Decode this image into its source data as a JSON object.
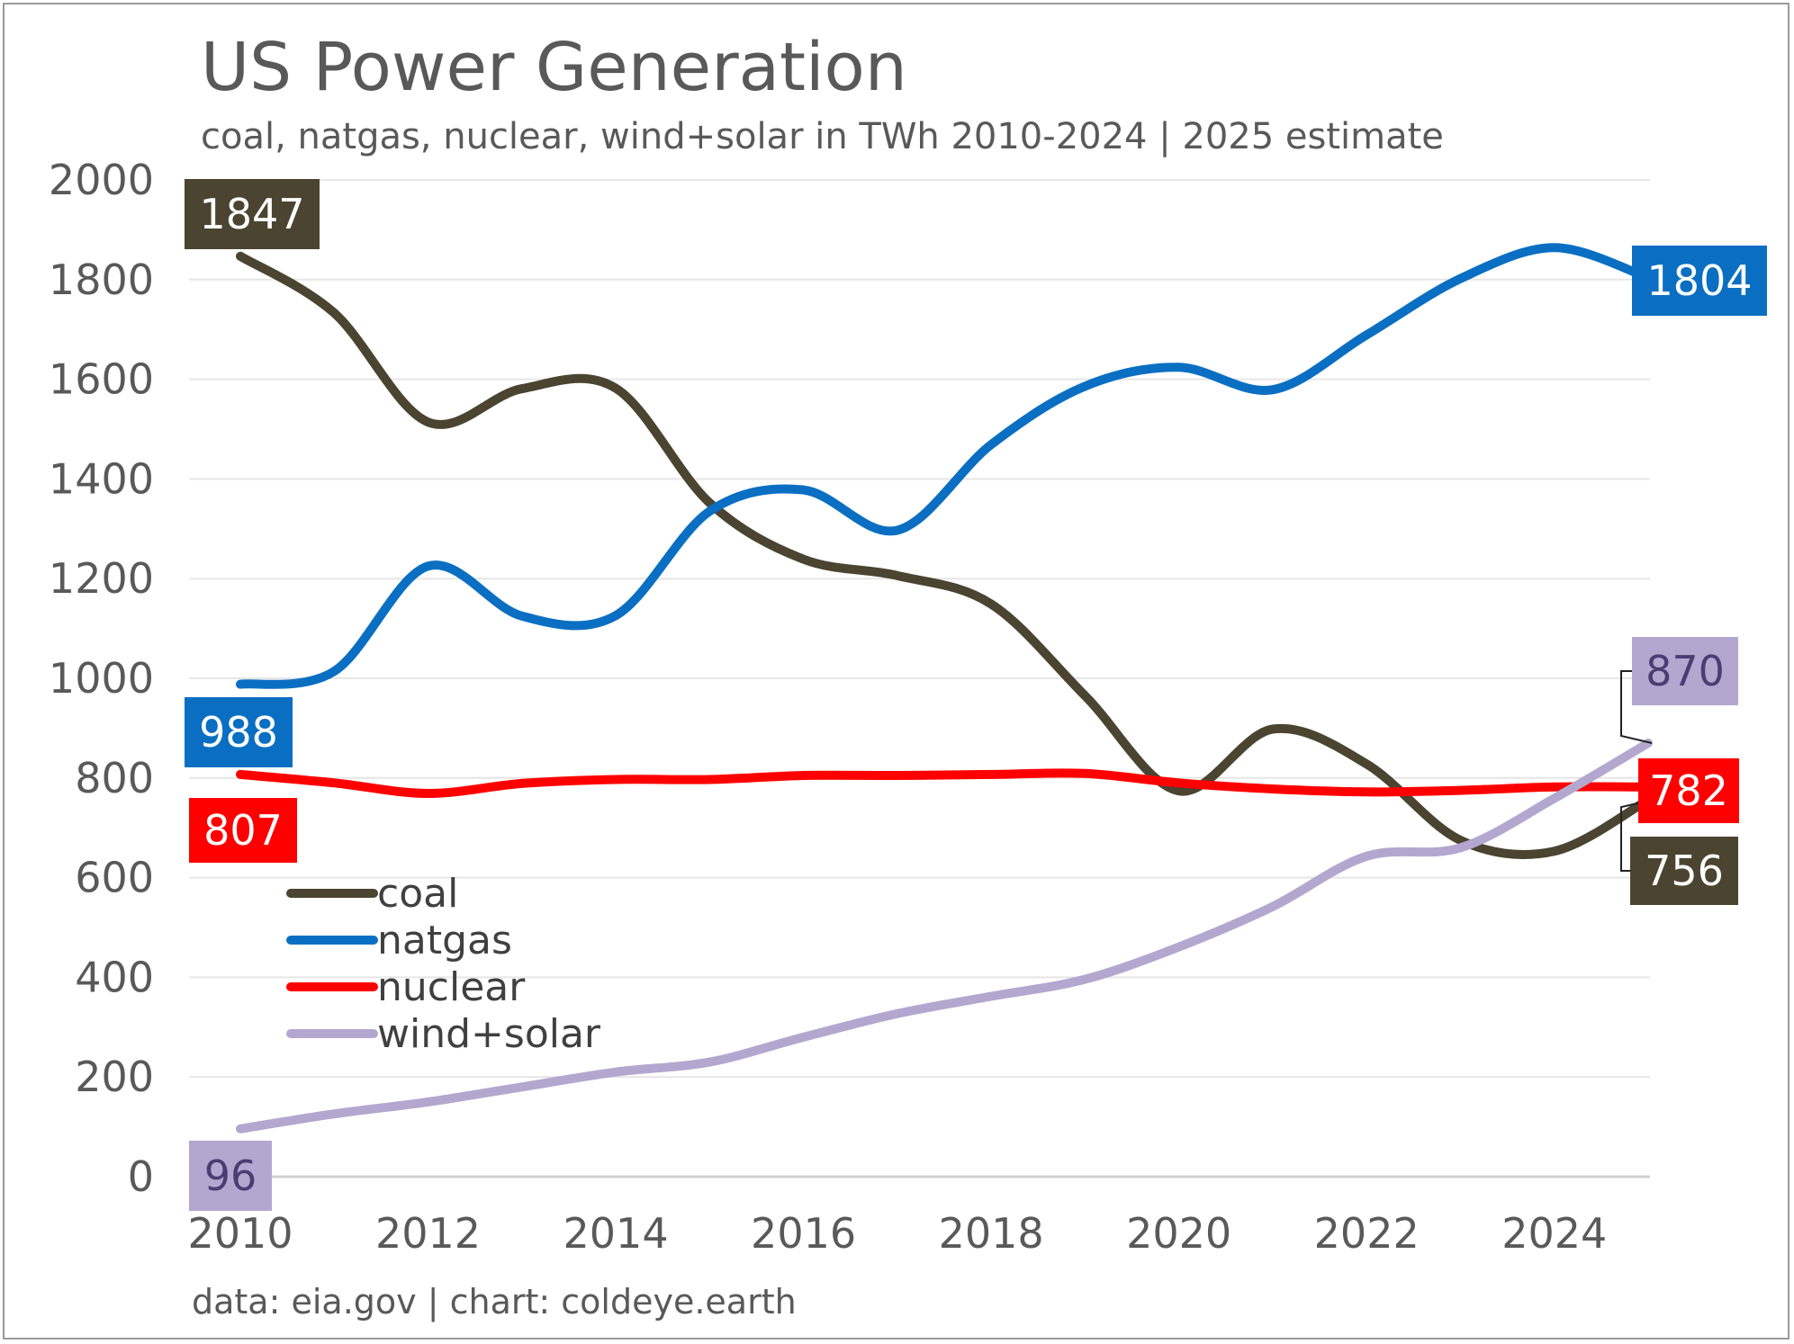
{
  "chart_data": {
    "type": "line",
    "title": "US Power Generation",
    "subtitle": "coal, natgas, nuclear, wind+solar in TWh 2010-2024 | 2025 estimate",
    "footer": "data: eia.gov | chart: coldeye.earth",
    "xlabel": "",
    "ylabel": "",
    "x": [
      2010,
      2011,
      2012,
      2013,
      2014,
      2015,
      2016,
      2017,
      2018,
      2019,
      2020,
      2021,
      2022,
      2023,
      2024,
      2025
    ],
    "xticks": [
      "2010",
      "2012",
      "2014",
      "2016",
      "2018",
      "2020",
      "2022",
      "2024"
    ],
    "yticks": [
      "0",
      "200",
      "400",
      "600",
      "800",
      "1000",
      "1200",
      "1400",
      "1600",
      "1800",
      "2000"
    ],
    "ylim": [
      0,
      2000
    ],
    "grid": true,
    "legend_position": "left, lower-middle",
    "series": [
      {
        "name": "coal",
        "color": "#4a4430",
        "label_text_color": "#ffffff",
        "start_label": "1847",
        "end_label": "756",
        "values": [
          1847,
          1733,
          1514,
          1581,
          1582,
          1352,
          1239,
          1206,
          1149,
          965,
          774,
          898,
          828,
          675,
          653,
          756
        ]
      },
      {
        "name": "natgas",
        "color": "#0a6fc2",
        "label_text_color": "#ffffff",
        "start_label": "988",
        "end_label": "1804",
        "values": [
          988,
          1014,
          1225,
          1125,
          1126,
          1335,
          1378,
          1297,
          1469,
          1586,
          1624,
          1579,
          1689,
          1802,
          1864,
          1804
        ]
      },
      {
        "name": "nuclear",
        "color": "#ff0000",
        "label_text_color": "#ffffff",
        "start_label": "807",
        "end_label": "782",
        "values": [
          807,
          790,
          769,
          789,
          797,
          797,
          805,
          805,
          807,
          809,
          790,
          778,
          772,
          775,
          782,
          782
        ]
      },
      {
        "name": "wind+solar",
        "color": "#b4a7cf",
        "label_text_color": "#4b3d73",
        "start_label": "96",
        "end_label": "870",
        "values": [
          96,
          126,
          150,
          180,
          210,
          230,
          280,
          327,
          362,
          396,
          461,
          542,
          643,
          660,
          759,
          870
        ]
      }
    ]
  }
}
